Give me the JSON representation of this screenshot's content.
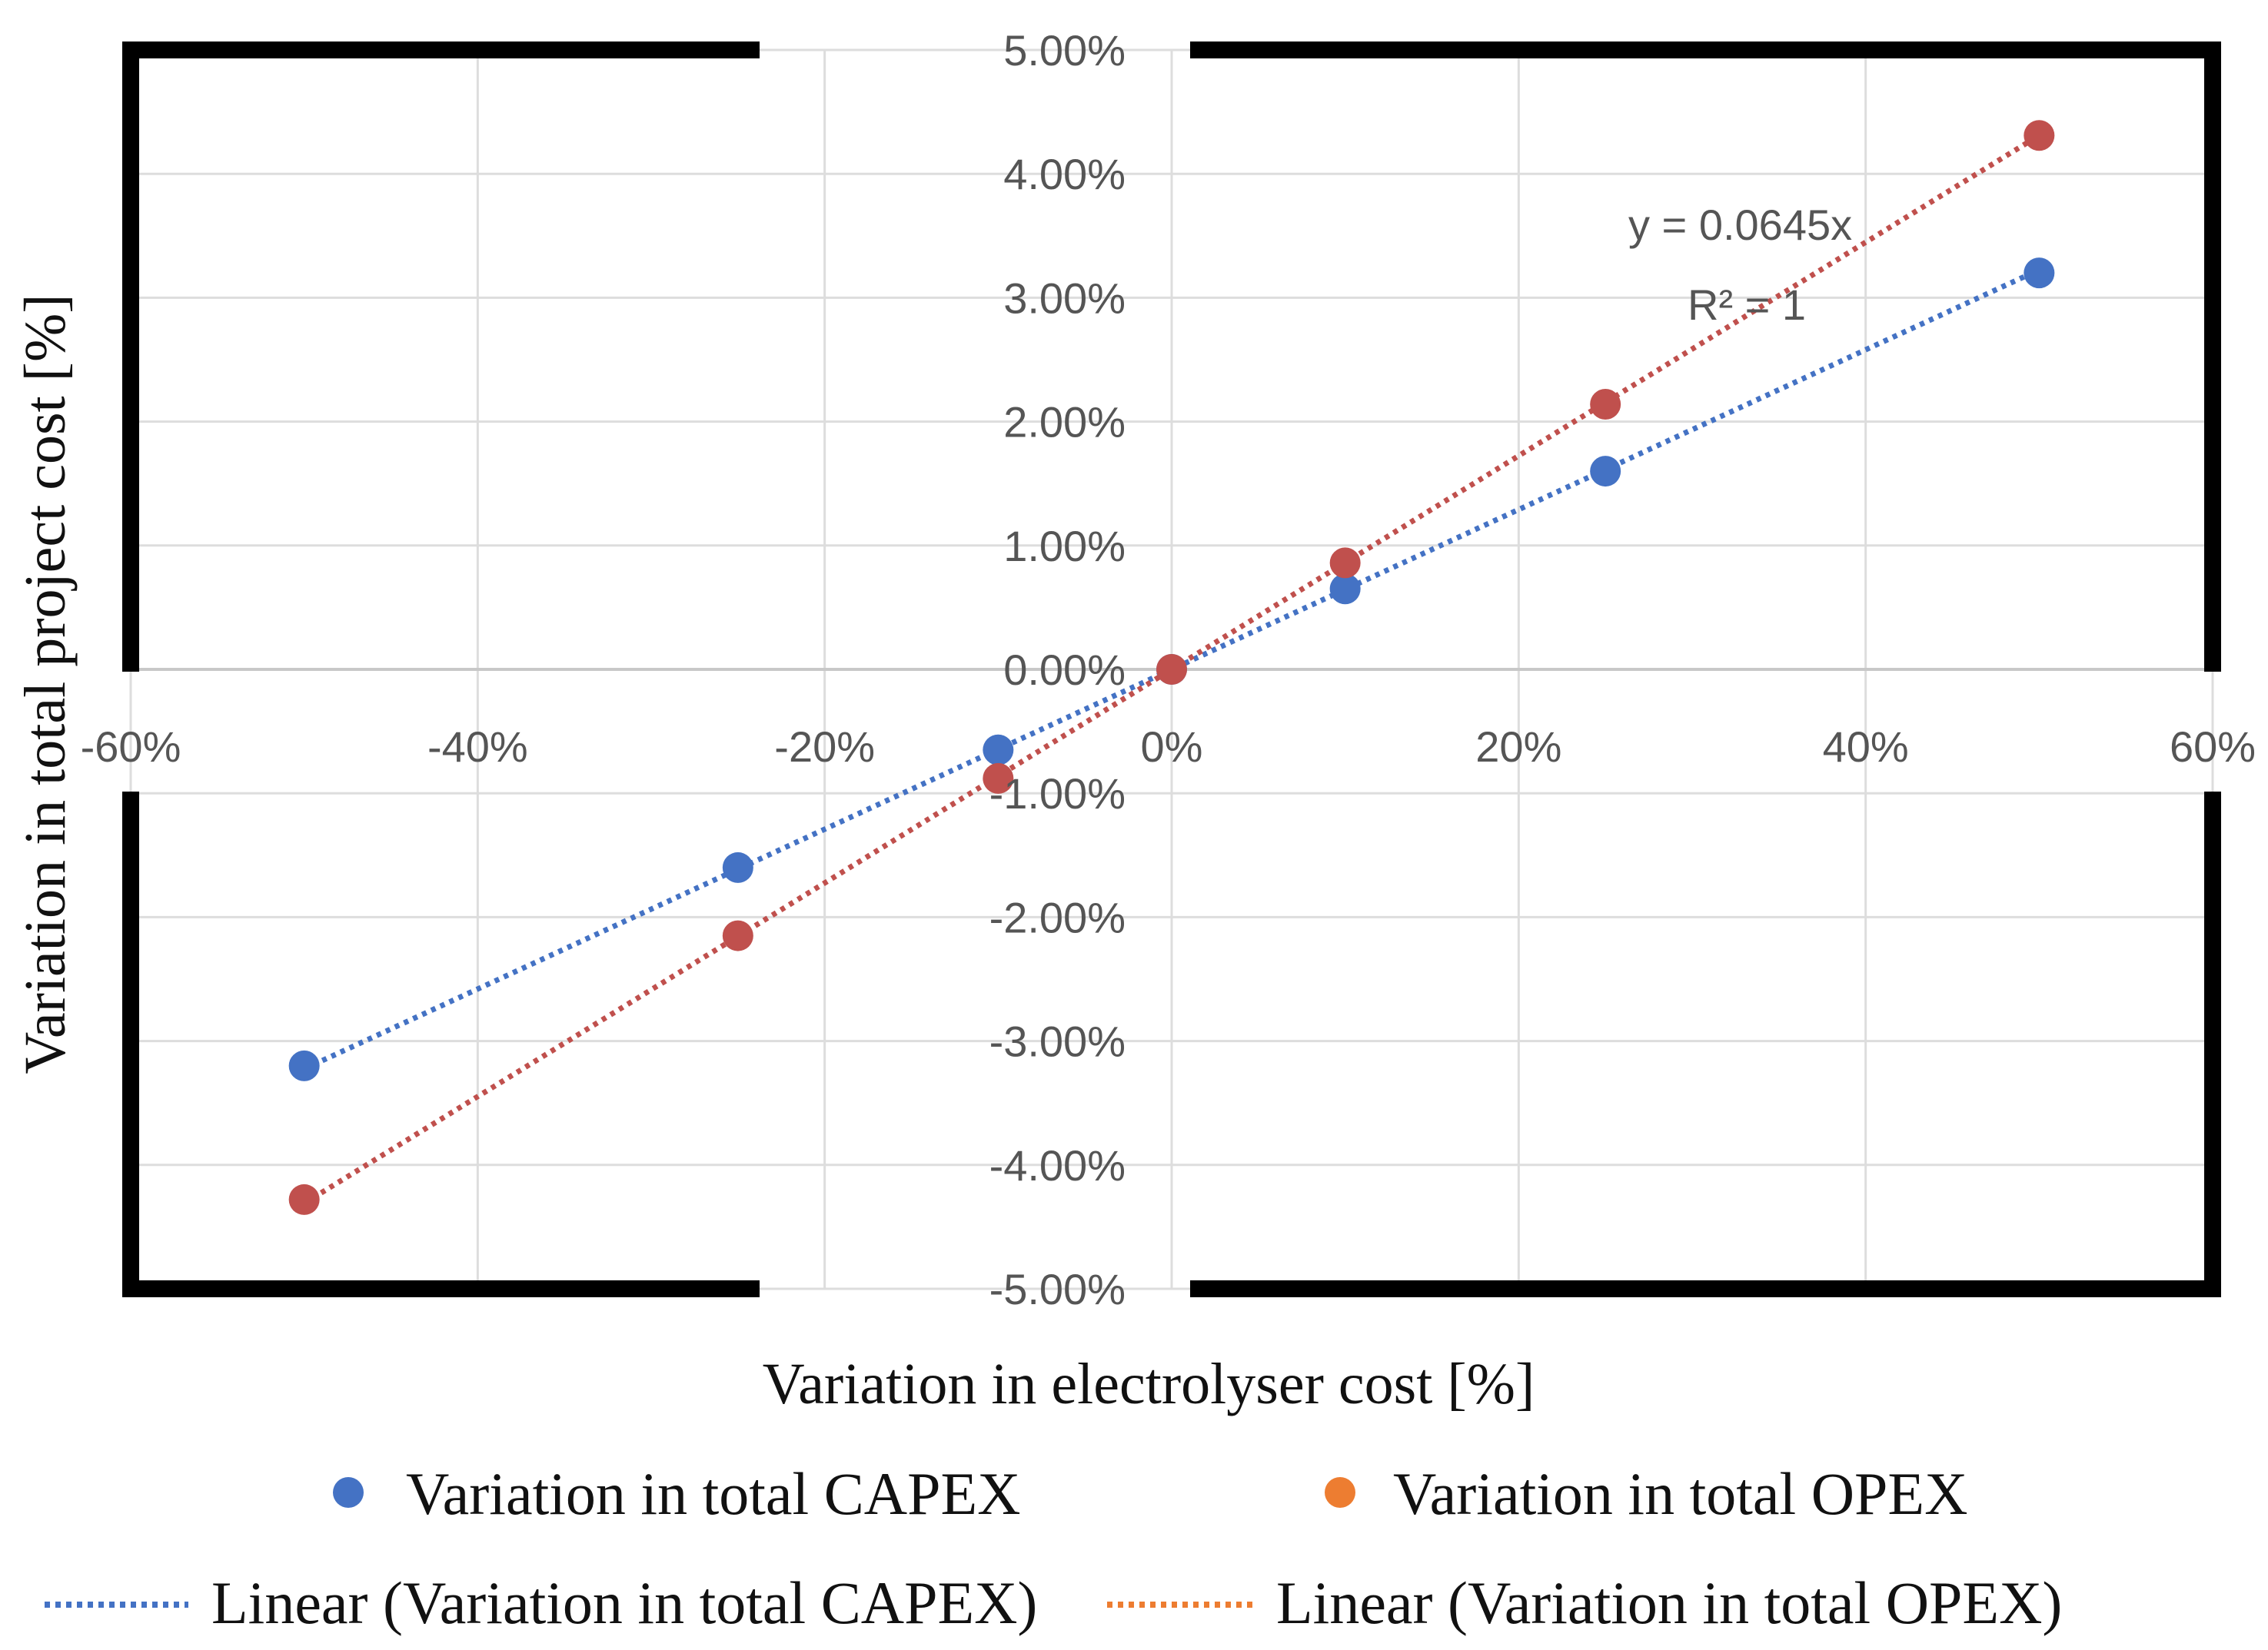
{
  "chart_data": {
    "type": "scatter",
    "xlabel": "Variation in electrolyser cost [%]",
    "ylabel": "Variation in total project cost [%]",
    "xlim": [
      -0.6,
      0.6
    ],
    "ylim": [
      -0.05,
      0.05
    ],
    "x_ticks": [
      -0.6,
      -0.4,
      -0.2,
      0,
      0.2,
      0.4,
      0.6
    ],
    "x_tick_labels": [
      "-60%",
      "-40%",
      "-20%",
      "0%",
      "20%",
      "40%",
      "60%"
    ],
    "y_ticks": [
      0.05,
      0.04,
      0.03,
      0.02,
      0.01,
      0,
      -0.01,
      -0.02,
      -0.03,
      -0.04,
      -0.05
    ],
    "y_tick_labels": [
      "5.00%",
      "4.00%",
      "3.00%",
      "2.00%",
      "1.00%",
      "0.00%",
      "-1.00%",
      "-2.00%",
      "-3.00%",
      "-4.00%",
      "-5.00%"
    ],
    "grid": true,
    "series": [
      {
        "name": "Variation in total CAPEX",
        "color": "#4472C4",
        "x": [
          -0.5,
          -0.25,
          -0.1,
          0,
          0.1,
          0.25,
          0.5
        ],
        "y": [
          -0.032,
          -0.016,
          -0.0065,
          0,
          0.0065,
          0.016,
          0.032
        ],
        "trendline": {
          "name": "Linear (Variation in total CAPEX)",
          "slope": 0.0645,
          "color": "#4472C4"
        }
      },
      {
        "name": "Variation in total OPEX",
        "color": "#C0504D",
        "legend_marker_color": "#ED7D31",
        "x": [
          -0.5,
          -0.25,
          -0.1,
          0,
          0.1,
          0.25,
          0.5
        ],
        "y": [
          -0.0428,
          -0.0215,
          -0.0088,
          0,
          0.0086,
          0.0214,
          0.0431
        ],
        "trendline": {
          "name": "Linear (Variation in total OPEX)",
          "slope": 0.0862,
          "color": "#C0504D"
        }
      }
    ],
    "annotations": [
      "y = 0.0645x",
      "R² = 1"
    ]
  },
  "legend": {
    "capex_label": "Variation in total CAPEX",
    "opex_label": "Variation in total OPEX",
    "capex_trend_label": "Linear (Variation in total CAPEX)",
    "opex_trend_label": "Linear (Variation in total OPEX)"
  }
}
